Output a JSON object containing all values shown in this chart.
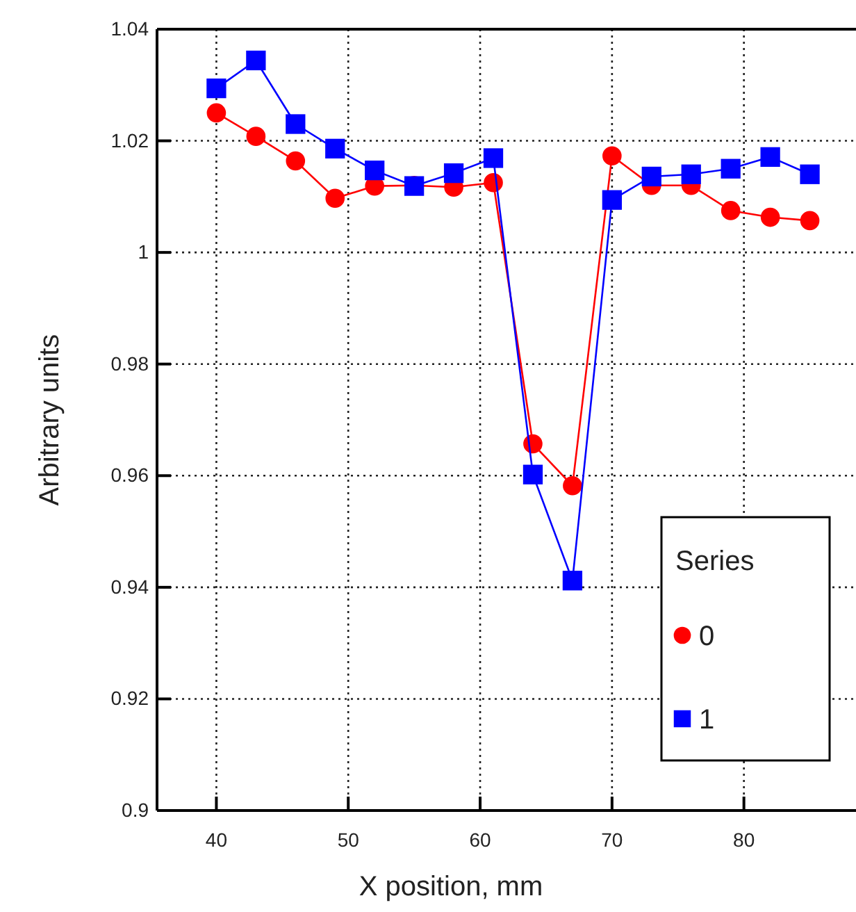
{
  "chart_data": {
    "type": "line",
    "xlabel": "X position, mm",
    "ylabel": "Arbitrary units",
    "legend_title": "Series",
    "legend": "bottom right",
    "grid": true,
    "line_style": "solid",
    "x": [
      40,
      43,
      46,
      49,
      52,
      55,
      58,
      61,
      64,
      67,
      70,
      73,
      76,
      79,
      82,
      85
    ],
    "xlim": [
      35.5,
      88.5
    ],
    "xticks": [
      40,
      50,
      60,
      70,
      80
    ],
    "ylim": [
      0.9,
      1.04
    ],
    "yticks": [
      0.9,
      0.92,
      0.94,
      0.96,
      0.98,
      1,
      1.02,
      1.04
    ],
    "series": [
      {
        "name": "0",
        "color": "#ff0000",
        "marker": "circle",
        "values": [
          1.025,
          1.0208,
          1.0164,
          1.0097,
          1.0119,
          1.012,
          1.0117,
          1.0125,
          0.9657,
          0.9582,
          1.0173,
          1.012,
          1.012,
          1.0075,
          1.0063,
          1.0057
        ]
      },
      {
        "name": "1",
        "color": "#0000ff",
        "marker": "square",
        "values": [
          1.0294,
          1.0344,
          1.023,
          1.0186,
          1.0147,
          1.0119,
          1.0142,
          1.0169,
          0.9602,
          0.9412,
          1.0094,
          1.0136,
          1.014,
          1.015,
          1.0171,
          1.014
        ]
      }
    ]
  }
}
